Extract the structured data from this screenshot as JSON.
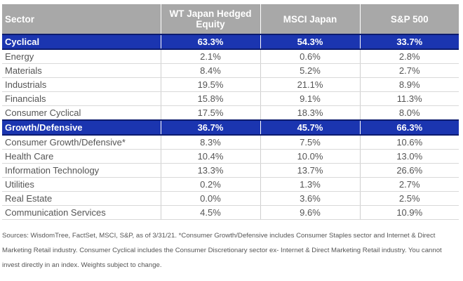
{
  "table": {
    "headers": [
      "Sector",
      "WT Japan Hedged Equity",
      "MSCI Japan",
      "S&P 500"
    ],
    "rows": [
      {
        "group": true,
        "label": "Cyclical",
        "values": [
          "63.3%",
          "54.3%",
          "33.7%"
        ]
      },
      {
        "group": false,
        "label": "Energy",
        "values": [
          "2.1%",
          "0.6%",
          "2.8%"
        ]
      },
      {
        "group": false,
        "label": "Materials",
        "values": [
          "8.4%",
          "5.2%",
          "2.7%"
        ]
      },
      {
        "group": false,
        "label": "Industrials",
        "values": [
          "19.5%",
          "21.1%",
          "8.9%"
        ]
      },
      {
        "group": false,
        "label": "Financials",
        "values": [
          "15.8%",
          "9.1%",
          "11.3%"
        ]
      },
      {
        "group": false,
        "label": "Consumer Cyclical",
        "values": [
          "17.5%",
          "18.3%",
          "8.0%"
        ]
      },
      {
        "group": true,
        "label": "Growth/Defensive",
        "values": [
          "36.7%",
          "45.7%",
          "66.3%"
        ]
      },
      {
        "group": false,
        "label": "Consumer Growth/Defensive*",
        "values": [
          "8.3%",
          "7.5%",
          "10.6%"
        ]
      },
      {
        "group": false,
        "label": "Health Care",
        "values": [
          "10.4%",
          "10.0%",
          "13.0%"
        ]
      },
      {
        "group": false,
        "label": "Information Technology",
        "values": [
          "13.3%",
          "13.7%",
          "26.6%"
        ]
      },
      {
        "group": false,
        "label": "Utilities",
        "values": [
          "0.2%",
          "1.3%",
          "2.7%"
        ]
      },
      {
        "group": false,
        "label": "Real Estate",
        "values": [
          "0.0%",
          "3.6%",
          "2.5%"
        ]
      },
      {
        "group": false,
        "label": "Communication Services",
        "values": [
          "4.5%",
          "9.6%",
          "10.9%"
        ]
      }
    ]
  },
  "footnote": "Sources: WisdomTree, FactSet, MSCI, S&P, as of 3/31/21. *Consumer Growth/Defensive includes Consumer Staples sector and Internet & Direct Marketing Retail industry. Consumer Cyclical includes the Consumer Discretionary sector ex- Internet & Direct Marketing Retail industry. You cannot invest directly in an index. Weights subject to change.",
  "colors": {
    "header_bg": "#a8a8a8",
    "group_bg": "#1b35b0",
    "text": "#555555"
  }
}
